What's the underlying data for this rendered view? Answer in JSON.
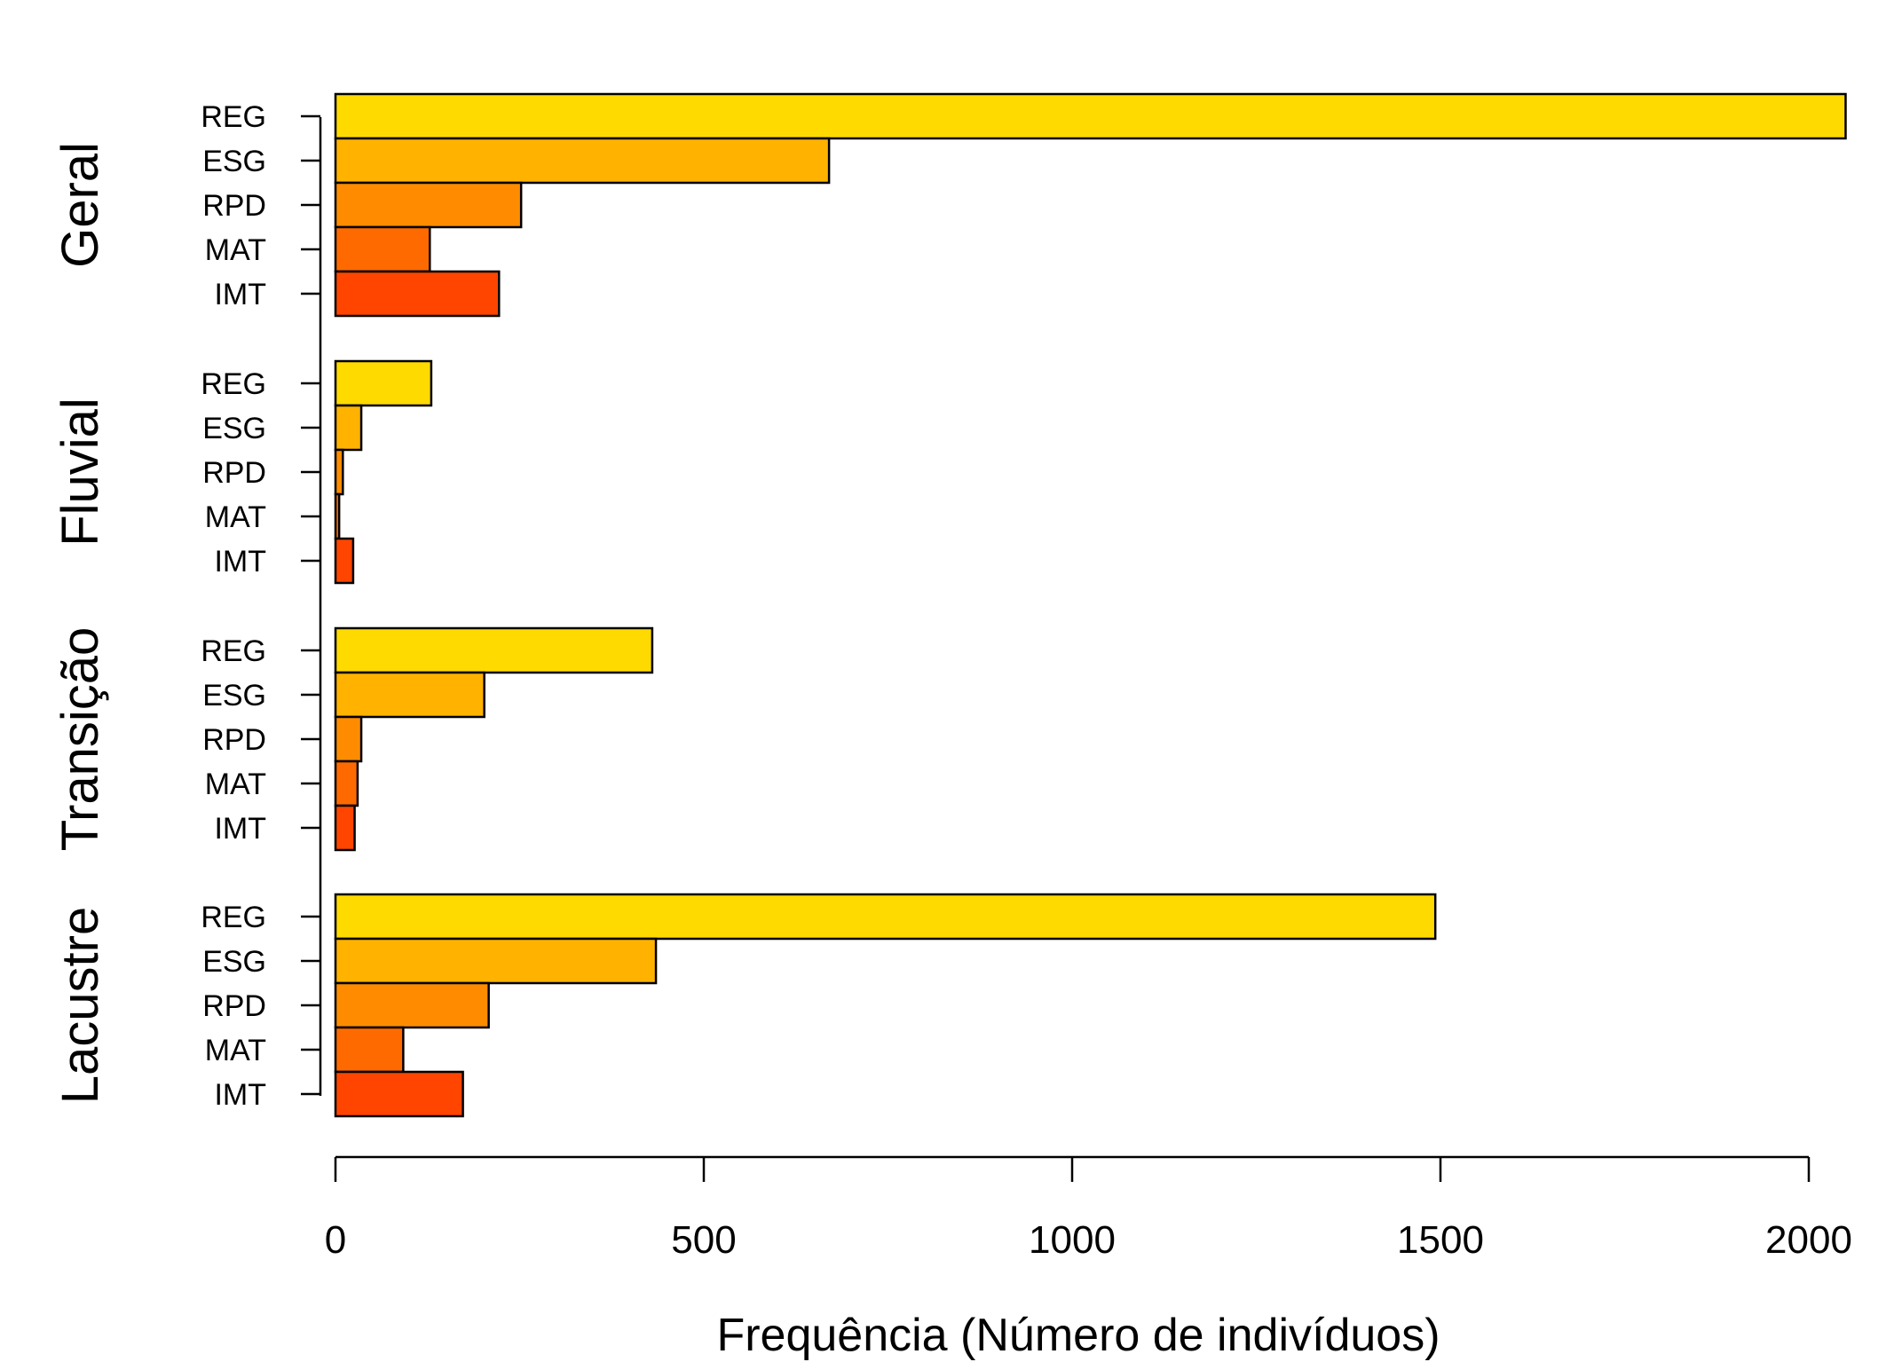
{
  "chart_data": {
    "type": "bar",
    "orientation": "horizontal",
    "xlabel": "Frequência (Número de indivíduos)",
    "ylabel": "",
    "xlim": [
      0,
      2000
    ],
    "xticks": [
      0,
      500,
      1000,
      1500,
      2000
    ],
    "grid": false,
    "categories": [
      "REG",
      "ESG",
      "RPD",
      "MAT",
      "IMT"
    ],
    "colors": [
      "#FFDA00",
      "#FFB300",
      "#FF8C00",
      "#FF6A00",
      "#FF4500"
    ],
    "groups": [
      {
        "name": "Geral",
        "values": [
          2050,
          670,
          252,
          128,
          222
        ]
      },
      {
        "name": "Fluvial",
        "values": [
          130,
          35,
          10,
          5,
          24
        ]
      },
      {
        "name": "Transição",
        "values": [
          430,
          202,
          35,
          30,
          26
        ]
      },
      {
        "name": "Lacustre",
        "values": [
          1493,
          435,
          208,
          92,
          173
        ]
      }
    ]
  }
}
